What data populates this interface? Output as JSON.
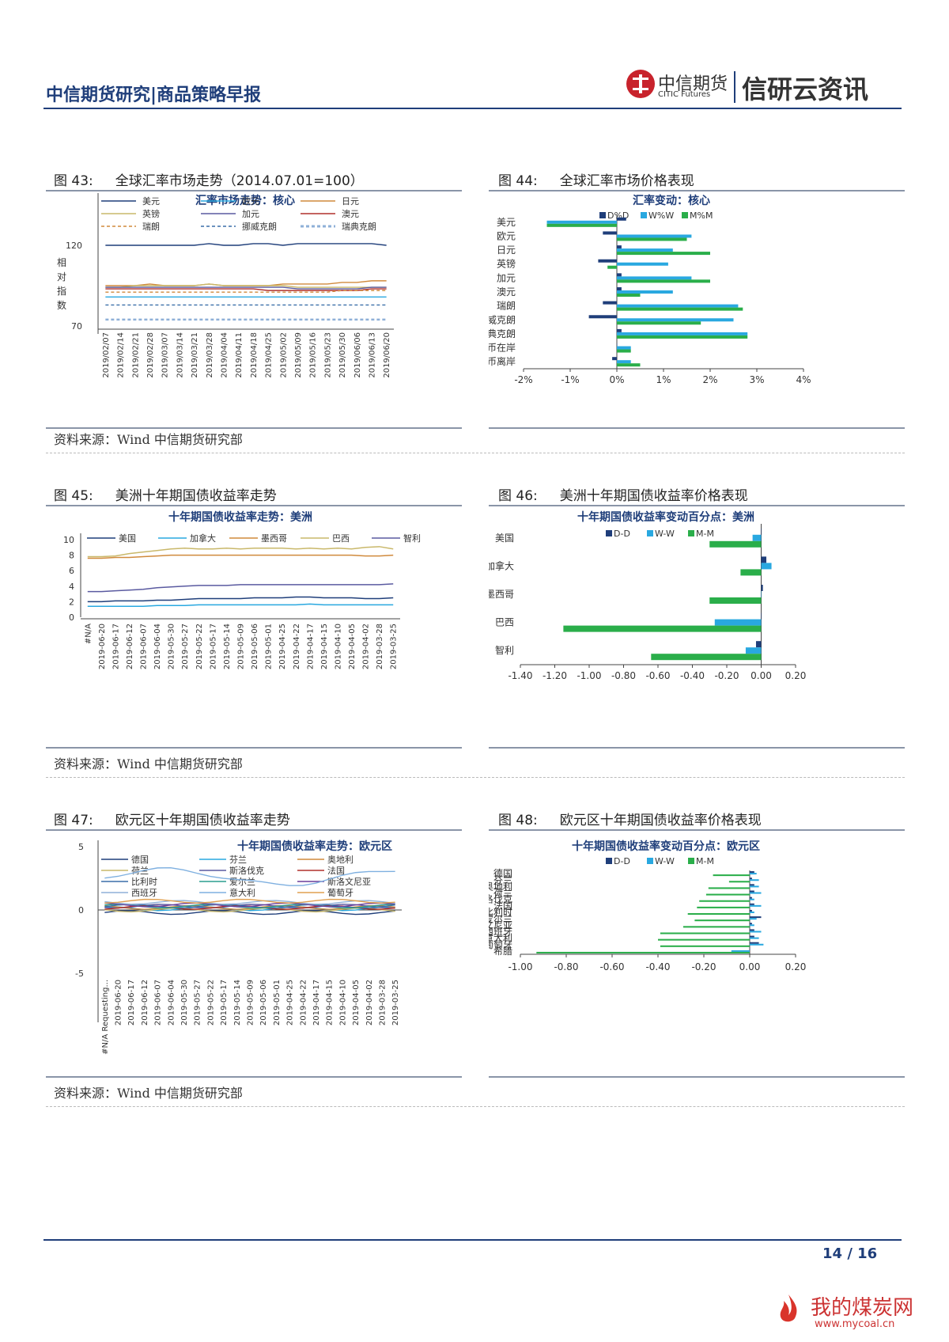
{
  "header": {
    "title": "中信期货研究|商品策略早报",
    "logo_cn": "中信期货",
    "logo_en": "CITIC Futures",
    "brand": "信研云资讯"
  },
  "footer": {
    "page": "14 / 16",
    "watermark": "我的煤炭网",
    "watermark_url": "www.mycoal.cn"
  },
  "figures": {
    "f43": {
      "num": "图 43:",
      "title": "全球汇率市场走势（2014.07.01=100）"
    },
    "f44": {
      "num": "图 44:",
      "title": "全球汇率市场价格表现"
    },
    "f45": {
      "num": "图 45:",
      "title": "美洲十年期国债收益率走势"
    },
    "f46": {
      "num": "图 46:",
      "title": "美洲十年期国债收益率价格表现"
    },
    "f47": {
      "num": "图 47:",
      "title": "欧元区十年期国债收益率走势"
    },
    "f48": {
      "num": "图 48:",
      "title": "欧元区十年期国债收益率价格表现"
    }
  },
  "source": "资料来源：Wind  中信期货研究部",
  "chart_data": [
    {
      "id": "c43",
      "type": "line",
      "title": "汇率市场走势：核心",
      "ylabel": "相对指数",
      "yticks": [
        "120",
        "70"
      ],
      "ylim": [
        70,
        130
      ],
      "legend": [
        "美元",
        "欧元",
        "日元",
        "英镑",
        "加元",
        "澳元",
        "瑞朗",
        "挪威克朗",
        "瑞典克朗"
      ],
      "colors": [
        "#1f3e7a",
        "#29a8e0",
        "#d08a3c",
        "#c9b86a",
        "#5a5aa0",
        "#b0302c",
        "#d08a3c",
        "#3a6fa8",
        "#8fb0d8"
      ],
      "x": [
        "2019/02/07",
        "2019/02/14",
        "2019/02/21",
        "2019/02/28",
        "2019/03/07",
        "2019/03/14",
        "2019/03/21",
        "2019/03/28",
        "2019/04/04",
        "2019/04/11",
        "2019/04/18",
        "2019/04/25",
        "2019/05/02",
        "2019/05/09",
        "2019/05/16",
        "2019/05/23",
        "2019/05/30",
        "2019/06/06",
        "2019/06/13",
        "2019/06/20"
      ],
      "series": [
        {
          "name": "美元",
          "values": [
            120,
            120,
            120,
            120,
            120,
            120,
            120,
            121,
            120,
            120,
            121,
            121,
            120,
            121,
            121,
            121,
            121,
            121,
            121,
            120
          ]
        },
        {
          "name": "欧元",
          "values": [
            88,
            88,
            88,
            88,
            88,
            88,
            88,
            88,
            88,
            88,
            88,
            88,
            88,
            88,
            88,
            88,
            88,
            88,
            88,
            88
          ]
        },
        {
          "name": "日元",
          "values": [
            95,
            95,
            95,
            96,
            95,
            95,
            95,
            96,
            95,
            95,
            95,
            95,
            96,
            96,
            96,
            96,
            97,
            97,
            98,
            98
          ]
        },
        {
          "name": "英镑",
          "values": [
            94,
            94,
            95,
            95,
            95,
            95,
            95,
            96,
            95,
            95,
            95,
            95,
            95,
            94,
            94,
            94,
            94,
            94,
            94,
            94
          ]
        },
        {
          "name": "加元",
          "values": [
            94,
            94,
            94,
            94,
            94,
            94,
            94,
            94,
            94,
            94,
            94,
            94,
            94,
            93,
            93,
            93,
            93,
            93,
            94,
            94
          ]
        },
        {
          "name": "澳元",
          "values": [
            93,
            93,
            93,
            93,
            93,
            93,
            93,
            93,
            93,
            93,
            93,
            92,
            92,
            92,
            92,
            92,
            92,
            92,
            93,
            93
          ]
        },
        {
          "name": "瑞朗",
          "values": [
            91,
            91,
            91,
            91,
            91,
            91,
            91,
            91,
            91,
            91,
            91,
            91,
            91,
            91,
            91,
            91,
            92,
            92,
            92,
            92
          ]
        },
        {
          "name": "挪威克朗",
          "values": [
            83,
            83,
            83,
            83,
            83,
            83,
            83,
            83,
            83,
            83,
            83,
            83,
            83,
            83,
            83,
            83,
            83,
            83,
            83,
            83
          ]
        },
        {
          "name": "瑞典克朗",
          "values": [
            74,
            74,
            74,
            74,
            74,
            74,
            74,
            74,
            74,
            74,
            74,
            74,
            74,
            74,
            74,
            74,
            74,
            74,
            74,
            74
          ]
        }
      ]
    },
    {
      "id": "c44",
      "type": "bar",
      "title": "汇率变动：核心",
      "categories": [
        "美元",
        "欧元",
        "日元",
        "英镑",
        "加元",
        "澳元",
        "瑞朗",
        "挪威克朗",
        "瑞典克朗",
        "人民币在岸",
        "人民币离岸"
      ],
      "xticks": [
        "-2%",
        "-1%",
        "0%",
        "1%",
        "2%",
        "3%",
        "4%"
      ],
      "xlim": [
        -2,
        4
      ],
      "series": [
        {
          "name": "D%D",
          "color": "#1f3e7a",
          "values": [
            0.2,
            -0.3,
            0.1,
            -0.4,
            0.1,
            0.1,
            -0.3,
            -0.6,
            0.1,
            0.0,
            -0.1
          ]
        },
        {
          "name": "W%W",
          "color": "#29a8e0",
          "values": [
            -1.5,
            1.6,
            1.2,
            1.1,
            1.6,
            1.2,
            2.6,
            2.5,
            2.8,
            0.3,
            0.3
          ]
        },
        {
          "name": "M%M",
          "color": "#2aae4a",
          "values": [
            -1.5,
            1.5,
            2.0,
            -0.2,
            2.0,
            0.5,
            2.7,
            1.8,
            2.8,
            0.3,
            0.5
          ]
        }
      ]
    },
    {
      "id": "c45",
      "type": "line",
      "title": "十年期国债收益率走势：美洲",
      "yticks": [
        "10",
        "8",
        "6",
        "4",
        "2",
        "0"
      ],
      "ylim": [
        0,
        10
      ],
      "x": [
        "#N/A",
        "2019-06-20",
        "2019-06-17",
        "2019-06-12",
        "2019-06-07",
        "2019-06-04",
        "2019-05-30",
        "2019-05-27",
        "2019-05-22",
        "2019-05-17",
        "2019-05-14",
        "2019-05-09",
        "2019-05-06",
        "2019-05-01",
        "2019-04-25",
        "2019-04-22",
        "2019-04-17",
        "2019-04-15",
        "2019-04-10",
        "2019-04-05",
        "2019-04-02",
        "2019-03-28",
        "2019-03-25"
      ],
      "series": [
        {
          "name": "美国",
          "color": "#1f3e7a",
          "values": [
            2.0,
            2.0,
            2.1,
            2.1,
            2.1,
            2.2,
            2.2,
            2.3,
            2.4,
            2.4,
            2.4,
            2.4,
            2.5,
            2.5,
            2.5,
            2.6,
            2.6,
            2.5,
            2.5,
            2.5,
            2.4,
            2.4,
            2.5
          ]
        },
        {
          "name": "加拿大",
          "color": "#29a8e0",
          "values": [
            1.4,
            1.4,
            1.4,
            1.4,
            1.4,
            1.5,
            1.5,
            1.5,
            1.6,
            1.6,
            1.6,
            1.6,
            1.6,
            1.6,
            1.6,
            1.6,
            1.7,
            1.6,
            1.6,
            1.6,
            1.6,
            1.6,
            1.6
          ]
        },
        {
          "name": "墨西哥",
          "color": "#d08a3c",
          "values": [
            7.6,
            7.6,
            7.7,
            7.7,
            7.8,
            7.9,
            8.0,
            8.0,
            8.0,
            8.0,
            8.0,
            8.0,
            8.0,
            8.0,
            8.0,
            8.0,
            8.0,
            8.0,
            8.0,
            8.0,
            7.9,
            7.9,
            8.0
          ]
        },
        {
          "name": "巴西",
          "color": "#c9b86a",
          "values": [
            7.8,
            7.8,
            7.9,
            8.2,
            8.4,
            8.6,
            8.8,
            8.9,
            8.8,
            8.8,
            8.9,
            8.8,
            8.9,
            8.9,
            8.9,
            8.8,
            8.9,
            8.8,
            8.9,
            8.8,
            9.0,
            9.1,
            8.8
          ]
        },
        {
          "name": "智利",
          "color": "#5a5aa0",
          "values": [
            3.3,
            3.3,
            3.4,
            3.5,
            3.6,
            3.8,
            3.9,
            4.0,
            4.1,
            4.1,
            4.1,
            4.2,
            4.2,
            4.2,
            4.2,
            4.2,
            4.2,
            4.2,
            4.2,
            4.2,
            4.2,
            4.2,
            4.3
          ]
        }
      ]
    },
    {
      "id": "c46",
      "type": "bar",
      "title": "十年期国债收益率变动百分点：美洲",
      "categories": [
        "美国",
        "加拿大",
        "墨西哥",
        "巴西",
        "智利"
      ],
      "xticks": [
        "-1.40",
        "-1.20",
        "-1.00",
        "-0.80",
        "-0.60",
        "-0.40",
        "-0.20",
        "0.00",
        "0.20"
      ],
      "xlim": [
        -1.4,
        0.2
      ],
      "series": [
        {
          "name": "D-D",
          "color": "#1f3e7a",
          "values": [
            0.0,
            0.03,
            0.01,
            0.0,
            -0.03
          ]
        },
        {
          "name": "W-W",
          "color": "#29a8e0",
          "values": [
            -0.05,
            0.06,
            0.0,
            -0.27,
            -0.09
          ]
        },
        {
          "name": "M-M",
          "color": "#2aae4a",
          "values": [
            -0.3,
            -0.12,
            -0.3,
            -1.15,
            -0.64
          ]
        }
      ]
    },
    {
      "id": "c47",
      "type": "line",
      "title": "十年期国债收益率走势：欧元区",
      "yticks": [
        "5",
        "0",
        "-5"
      ],
      "ylim": [
        -5,
        5
      ],
      "legend": [
        "德国",
        "芬兰",
        "奥地利",
        "荷兰",
        "斯洛伐克",
        "法国",
        "比利时",
        "爱尔兰",
        "斯洛文尼亚",
        "西班牙",
        "意大利",
        "葡萄牙"
      ],
      "x": [
        "#N/A Requesting...",
        "2019-06-20",
        "2019-06-17",
        "2019-06-12",
        "2019-06-07",
        "2019-06-04",
        "2019-05-30",
        "2019-05-27",
        "2019-05-22",
        "2019-05-17",
        "2019-05-14",
        "2019-05-09",
        "2019-05-06",
        "2019-05-01",
        "2019-04-25",
        "2019-04-22",
        "2019-04-17",
        "2019-04-15",
        "2019-04-10",
        "2019-04-05",
        "2019-04-02",
        "2019-03-28",
        "2019-03-25"
      ],
      "series": [
        {
          "name": "德国",
          "color": "#1f3e7a",
          "base": -0.2
        },
        {
          "name": "芬兰",
          "color": "#29a8e0",
          "base": 0.1
        },
        {
          "name": "奥地利",
          "color": "#d08a3c",
          "base": 0.2
        },
        {
          "name": "荷兰",
          "color": "#c9b86a",
          "base": 0.0
        },
        {
          "name": "斯洛伐克",
          "color": "#5a5aa0",
          "base": 0.3
        },
        {
          "name": "法国",
          "color": "#b0302c",
          "base": 0.2
        },
        {
          "name": "比利时",
          "color": "#3a6fa8",
          "base": 0.3
        },
        {
          "name": "爱尔兰",
          "color": "#2a9d8f",
          "base": 0.3
        },
        {
          "name": "斯洛文尼亚",
          "color": "#6a3d9a",
          "base": 0.4
        },
        {
          "name": "西班牙",
          "color": "#8fb0d8",
          "base": 0.6
        },
        {
          "name": "意大利",
          "color": "#7fb0e0",
          "base": 2.6
        },
        {
          "name": "葡萄牙",
          "color": "#e0a050",
          "base": 0.7
        }
      ]
    },
    {
      "id": "c48",
      "type": "bar",
      "title": "十年期国债收益率变动百分点：欧元区",
      "categories": [
        "德国",
        "芬兰",
        "奥地利",
        "荷兰",
        "斯洛伐克",
        "法国",
        "比利时",
        "爱尔兰",
        "斯洛文尼亚",
        "西班牙",
        "意大利",
        "葡萄牙",
        "希腊"
      ],
      "xticks": [
        "-1.00",
        "-0.80",
        "-0.60",
        "-0.40",
        "-0.20",
        "0.00",
        "0.20"
      ],
      "xlim": [
        -1.0,
        0.2
      ],
      "series": [
        {
          "name": "D-D",
          "color": "#1f3e7a",
          "values": [
            0.02,
            0.01,
            0.02,
            0.02,
            0.01,
            0.02,
            0.01,
            0.05,
            0.01,
            0.02,
            0.02,
            0.04,
            0.0
          ]
        },
        {
          "name": "W-W",
          "color": "#29a8e0",
          "values": [
            0.03,
            0.04,
            0.04,
            0.05,
            0.02,
            0.05,
            0.02,
            0.03,
            0.02,
            0.05,
            0.04,
            0.06,
            -0.08
          ]
        },
        {
          "name": "M-M",
          "color": "#2aae4a",
          "values": [
            -0.16,
            -0.09,
            -0.18,
            -0.19,
            -0.22,
            -0.23,
            -0.27,
            -0.24,
            -0.29,
            -0.39,
            -0.4,
            -0.39,
            -0.93
          ]
        }
      ]
    }
  ]
}
